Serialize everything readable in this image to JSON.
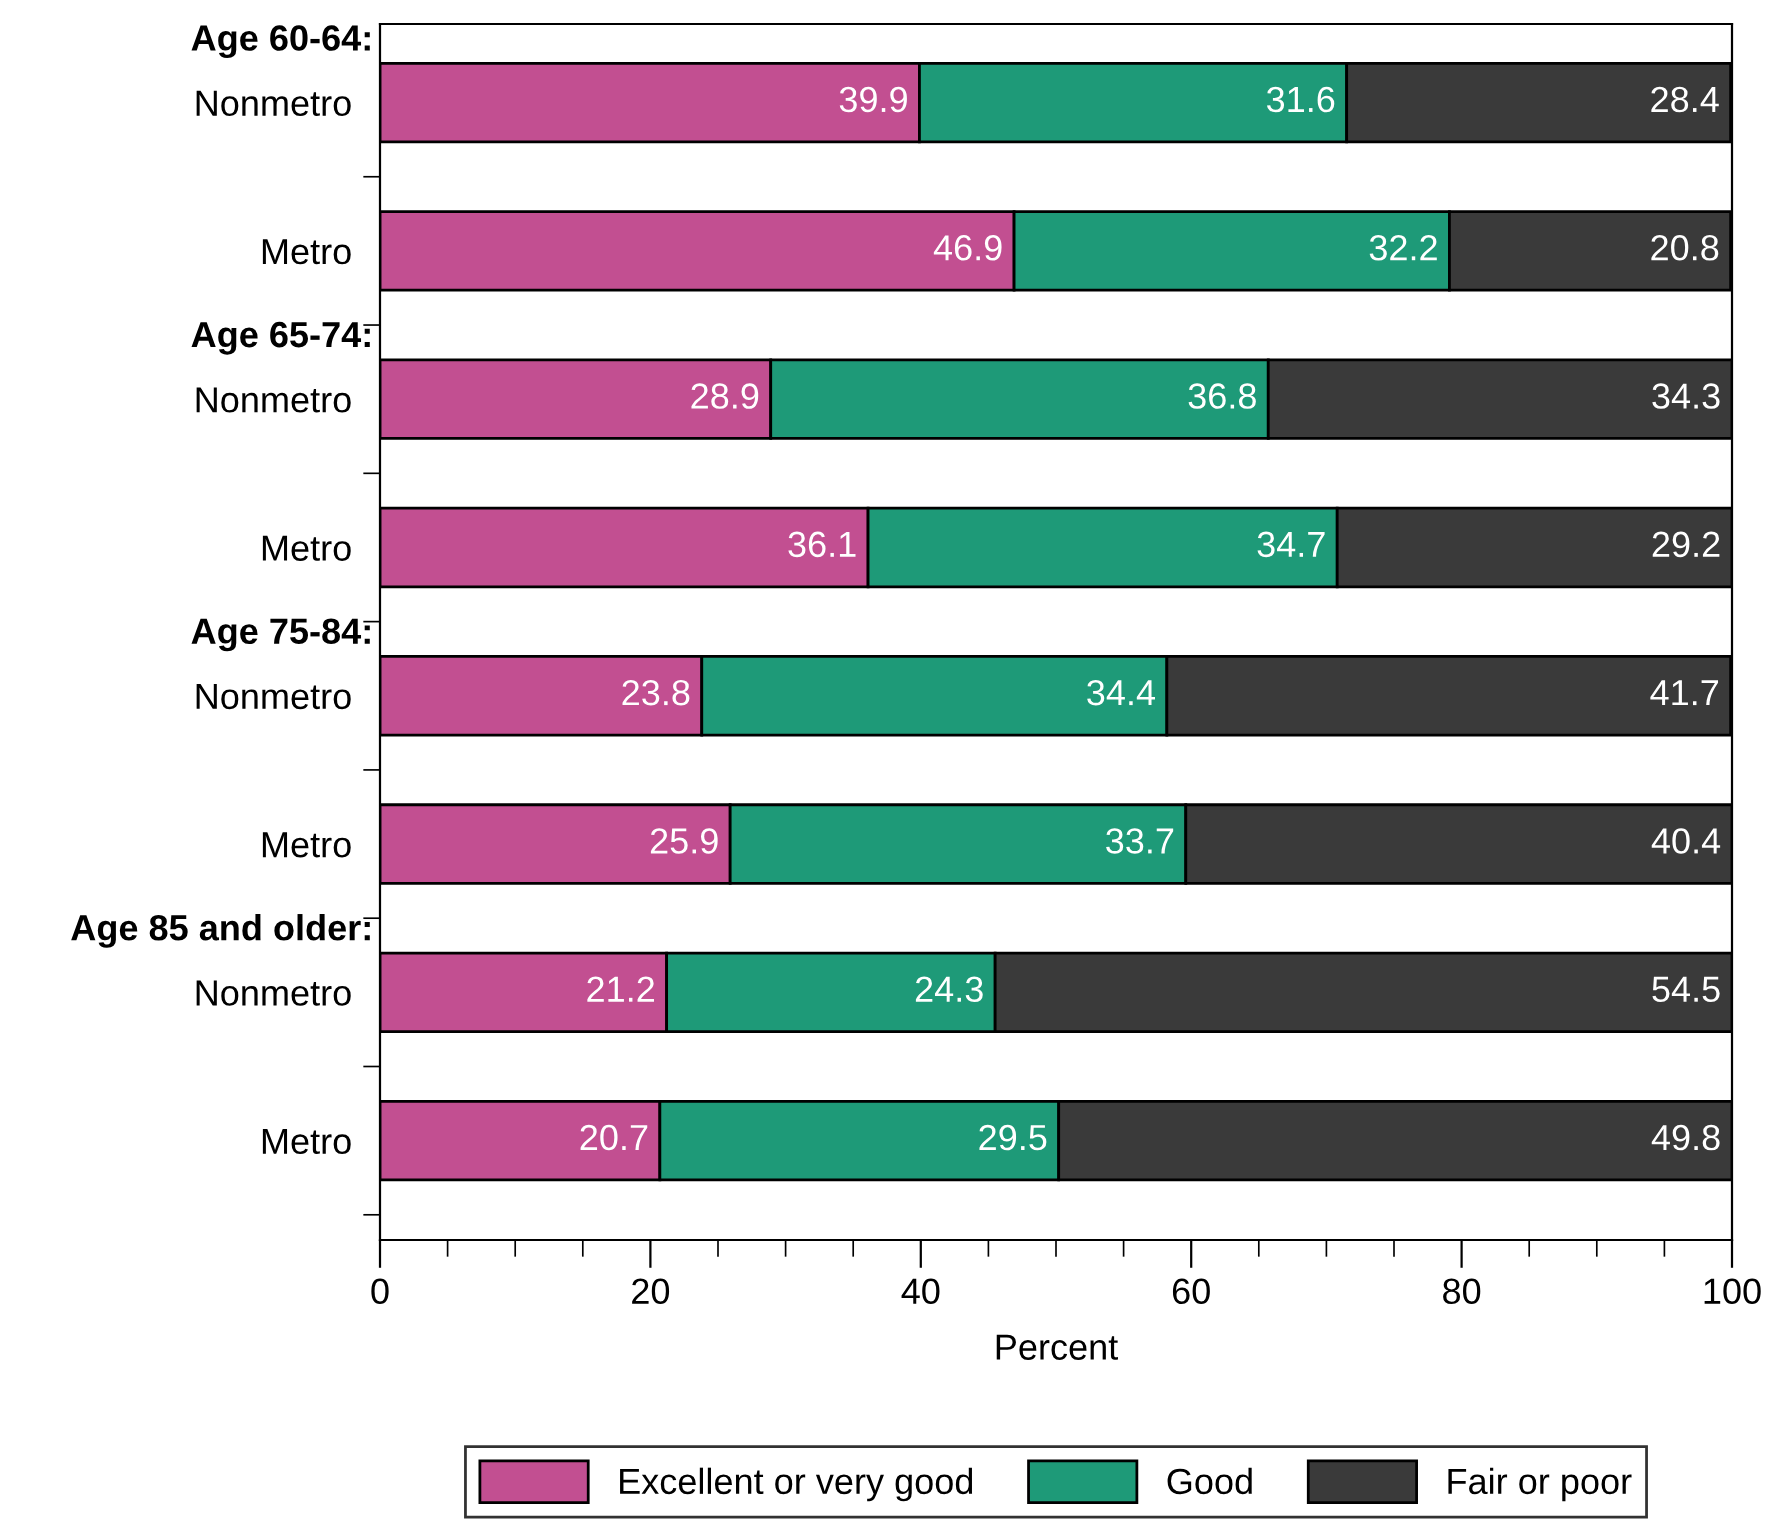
{
  "chart_data": {
    "type": "bar",
    "orientation": "horizontal",
    "stacked": true,
    "xlabel": "Percent",
    "categories": [
      "Nonmetro",
      "Metro",
      "Nonmetro",
      "Metro",
      "Nonmetro",
      "Metro",
      "Nonmetro",
      "Metro"
    ],
    "annotations": [
      "Age 60-64:",
      "Age 65-74:",
      "Age 75-84:",
      "Age 85 and older:"
    ],
    "series": [
      {
        "name": "Excellent or very good",
        "color": "#c24f91",
        "values": [
          39.9,
          46.9,
          28.9,
          36.1,
          23.8,
          25.9,
          21.2,
          20.7
        ]
      },
      {
        "name": "Good",
        "color": "#1e9a78",
        "values": [
          31.6,
          32.2,
          36.8,
          34.7,
          34.4,
          33.7,
          24.3,
          29.5
        ]
      },
      {
        "name": "Fair or poor",
        "color": "#3a3a3a",
        "values": [
          28.4,
          20.8,
          34.3,
          29.2,
          41.7,
          40.4,
          54.5,
          49.8
        ]
      }
    ],
    "xlim": [
      0,
      100
    ],
    "xticks": [
      0,
      20,
      40,
      60,
      80,
      100
    ],
    "data_labels": true,
    "legend": "bottom",
    "grid": false
  }
}
